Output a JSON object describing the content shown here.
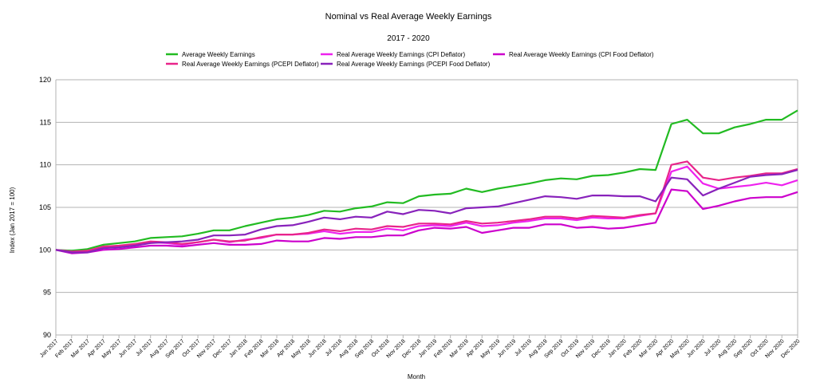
{
  "chart_data": {
    "type": "line",
    "title": "Nominal vs Real Average Weekly Earnings",
    "subtitle": "2017 - 2020",
    "xlabel": "Month",
    "ylabel": "Index (Jan 2017 = 100)",
    "ylim": [
      90,
      120
    ],
    "yticks": [
      "90",
      "95",
      "100",
      "105",
      "110",
      "115",
      "120"
    ],
    "grid": true,
    "legend_position": "top",
    "categories": [
      "Jan 2017",
      "Feb 2017",
      "Mar 2017",
      "Apr 2017",
      "May 2017",
      "Jun 2017",
      "Jul 2017",
      "Aug 2017",
      "Sep 2017",
      "Oct 2017",
      "Nov 2017",
      "Dec 2017",
      "Jan 2018",
      "Feb 2018",
      "Mar 2018",
      "Apr 2018",
      "May 2018",
      "Jun 2018",
      "Jul 2018",
      "Aug 2018",
      "Sep 2018",
      "Oct 2018",
      "Nov 2018",
      "Dec 2018",
      "Jan 2019",
      "Feb 2019",
      "Mar 2019",
      "Apr 2019",
      "May 2019",
      "Jun 2019",
      "Jul 2019",
      "Aug 2019",
      "Sep 2019",
      "Oct 2019",
      "Nov 2019",
      "Dec 2019",
      "Jan 2020",
      "Feb 2020",
      "Mar 2020",
      "Apr 2020",
      "May 2020",
      "Jun 2020",
      "Jul 2020",
      "Aug 2020",
      "Sep 2020",
      "Oct 2020",
      "Nov 2020",
      "Dec 2020"
    ],
    "series": [
      {
        "name": "Average Weekly Earnings",
        "color": "#22bb22",
        "values": [
          100,
          99.9,
          100.1,
          100.6,
          100.8,
          101.0,
          101.4,
          101.5,
          101.6,
          101.9,
          102.3,
          102.3,
          102.8,
          103.2,
          103.6,
          103.8,
          104.1,
          104.6,
          104.5,
          104.9,
          105.1,
          105.6,
          105.5,
          106.3,
          106.5,
          106.6,
          107.2,
          106.8,
          107.2,
          107.5,
          107.8,
          108.2,
          108.4,
          108.3,
          108.7,
          108.8,
          109.1,
          109.5,
          109.4,
          114.8,
          115.3,
          113.7,
          113.7,
          114.4,
          114.8,
          115.3,
          115.3,
          116.4
        ]
      },
      {
        "name": "Real Average Weekly Earnings (CPI Deflator)",
        "color": "#ee22ee",
        "values": [
          100,
          99.8,
          99.8,
          100.3,
          100.4,
          100.6,
          100.9,
          100.8,
          100.6,
          100.9,
          101.2,
          100.9,
          101.2,
          101.4,
          101.8,
          101.8,
          101.9,
          102.2,
          101.9,
          102.1,
          102.1,
          102.5,
          102.3,
          102.8,
          102.9,
          102.8,
          103.2,
          102.8,
          102.9,
          103.2,
          103.4,
          103.7,
          103.7,
          103.5,
          103.8,
          103.7,
          103.7,
          104.0,
          104.3,
          109.2,
          109.8,
          107.8,
          107.2,
          107.4,
          107.6,
          107.9,
          107.6,
          108.2
        ]
      },
      {
        "name": "Real Average Weekly Earnings (CPI Food Deflator)",
        "color": "#cc00cc",
        "values": [
          100,
          99.6,
          99.7,
          100.0,
          100.1,
          100.3,
          100.5,
          100.5,
          100.4,
          100.6,
          100.8,
          100.6,
          100.6,
          100.7,
          101.1,
          101.0,
          101.0,
          101.4,
          101.3,
          101.5,
          101.5,
          101.7,
          101.7,
          102.3,
          102.6,
          102.5,
          102.7,
          102.0,
          102.3,
          102.6,
          102.6,
          103.0,
          103.0,
          102.6,
          102.7,
          102.5,
          102.6,
          102.9,
          103.2,
          107.1,
          106.9,
          104.8,
          105.2,
          105.7,
          106.1,
          106.2,
          106.2,
          106.8
        ]
      },
      {
        "name": "Real Average Weekly Earnings (PCEPI Deflator)",
        "color": "#e8248a",
        "values": [
          100,
          99.8,
          99.9,
          100.4,
          100.5,
          100.7,
          101.0,
          100.9,
          100.7,
          100.9,
          101.2,
          101.0,
          101.1,
          101.5,
          101.8,
          101.8,
          102.0,
          102.4,
          102.2,
          102.5,
          102.4,
          102.8,
          102.7,
          103.1,
          103.1,
          103.0,
          103.4,
          103.1,
          103.2,
          103.4,
          103.6,
          103.9,
          103.9,
          103.7,
          104.0,
          103.9,
          103.8,
          104.1,
          104.3,
          110.0,
          110.4,
          108.5,
          108.2,
          108.5,
          108.7,
          109.0,
          109.0,
          109.5
        ]
      },
      {
        "name": "Real Average Weekly Earnings (PCEPI Food Deflator)",
        "color": "#8822bb",
        "values": [
          100,
          99.7,
          99.7,
          100.2,
          100.3,
          100.5,
          100.8,
          100.9,
          101.0,
          101.2,
          101.7,
          101.7,
          101.8,
          102.4,
          102.8,
          102.9,
          103.3,
          103.8,
          103.6,
          103.9,
          103.8,
          104.5,
          104.2,
          104.7,
          104.6,
          104.3,
          104.9,
          105.0,
          105.1,
          105.5,
          105.9,
          106.3,
          106.2,
          106.0,
          106.4,
          106.4,
          106.3,
          106.3,
          105.7,
          108.5,
          108.3,
          106.4,
          107.2,
          107.9,
          108.6,
          108.8,
          108.9,
          109.4
        ]
      }
    ]
  }
}
